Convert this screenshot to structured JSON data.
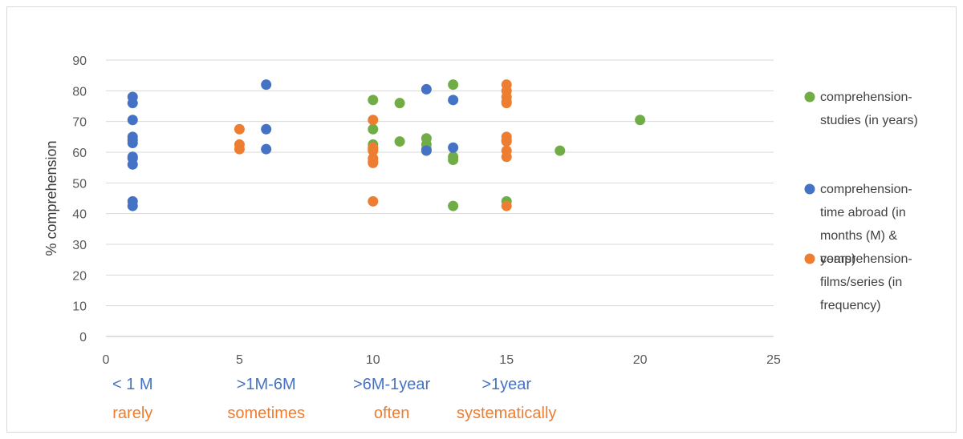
{
  "chart_data": {
    "type": "scatter",
    "ylabel": "% comprehension",
    "xlim": [
      0,
      25
    ],
    "ylim": [
      0,
      90
    ],
    "x_ticks": [
      0,
      5,
      10,
      15,
      20,
      25
    ],
    "y_ticks": [
      0,
      10,
      20,
      30,
      40,
      50,
      60,
      70,
      80,
      90
    ],
    "grid": "horizontal",
    "legend_position": "right",
    "series": [
      {
        "name": "comprehension-studies (in years)",
        "legend_lines": [
          "comprehension-",
          "studies (in years)"
        ],
        "color": "#70ad47",
        "points": [
          [
            10,
            77
          ],
          [
            10,
            67.5
          ],
          [
            10,
            62.5
          ],
          [
            10,
            61
          ],
          [
            11,
            76
          ],
          [
            11,
            63.5
          ],
          [
            12,
            64.5
          ],
          [
            12,
            62.5
          ],
          [
            12,
            61
          ],
          [
            13,
            82
          ],
          [
            13,
            58.5
          ],
          [
            13,
            57.5
          ],
          [
            13,
            42.5
          ],
          [
            15,
            44
          ],
          [
            17,
            60.5
          ],
          [
            20,
            70.5
          ]
        ]
      },
      {
        "name": "comprehension-time abroad (in months (M) & years)",
        "legend_lines": [
          "comprehension-",
          "time abroad (in",
          "months (M) &",
          "years)"
        ],
        "color": "#4472c4",
        "points": [
          [
            1,
            78
          ],
          [
            1,
            76
          ],
          [
            1,
            70.5
          ],
          [
            1,
            65
          ],
          [
            1,
            64
          ],
          [
            1,
            63
          ],
          [
            1,
            58.5
          ],
          [
            1,
            58
          ],
          [
            1,
            56
          ],
          [
            1,
            44
          ],
          [
            1,
            42.5
          ],
          [
            6,
            82
          ],
          [
            6,
            67.5
          ],
          [
            6,
            61
          ],
          [
            12,
            80.5
          ],
          [
            12,
            60.5
          ],
          [
            13,
            77
          ],
          [
            13,
            61.5
          ]
        ]
      },
      {
        "name": "comprehension-films/series (in frequency)",
        "legend_lines": [
          "comprehension-",
          "films/series (in",
          "frequency)"
        ],
        "color": "#ed7d31",
        "points": [
          [
            5,
            67.5
          ],
          [
            5,
            62.5
          ],
          [
            5,
            61
          ],
          [
            10,
            70.5
          ],
          [
            10,
            61.5
          ],
          [
            10,
            60.5
          ],
          [
            10,
            58
          ],
          [
            10,
            57
          ],
          [
            10,
            56.5
          ],
          [
            10,
            44
          ],
          [
            15,
            82
          ],
          [
            15,
            80
          ],
          [
            15,
            78
          ],
          [
            15,
            76.5
          ],
          [
            15,
            76
          ],
          [
            15,
            65
          ],
          [
            15,
            64
          ],
          [
            15,
            63.5
          ],
          [
            15,
            60.5
          ],
          [
            15,
            58.5
          ],
          [
            15,
            42.5
          ]
        ]
      }
    ],
    "category_labels": [
      {
        "x": 1,
        "top": "< 1 M",
        "bottom": "rarely"
      },
      {
        "x": 6,
        "top": ">1M-6M",
        "bottom": "sometimes"
      },
      {
        "x": 10.7,
        "top": ">6M-1year",
        "bottom": "often"
      },
      {
        "x": 15,
        "top": ">1year",
        "bottom": "systematically"
      }
    ],
    "category_colors": {
      "top": "#4472c4",
      "bottom": "#ed7d31"
    }
  }
}
